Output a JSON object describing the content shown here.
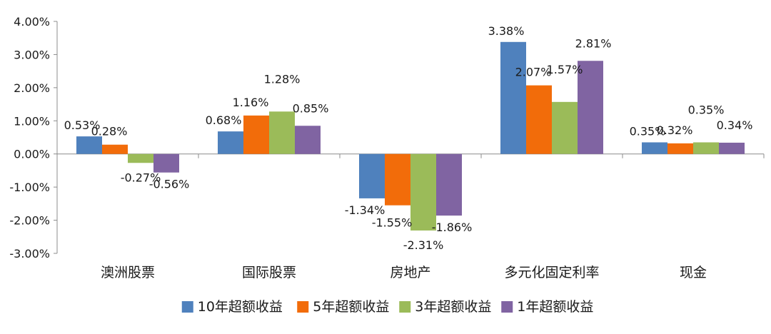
{
  "chart_data": {
    "type": "bar",
    "title": "",
    "xlabel": "",
    "ylabel": "",
    "ylim": [
      -3.0,
      4.0
    ],
    "y_ticks": [
      4.0,
      3.0,
      2.0,
      1.0,
      0.0,
      -1.0,
      -2.0,
      -3.0
    ],
    "y_tick_labels": [
      "4.00%",
      "3.00%",
      "2.00%",
      "1.00%",
      "0.00%",
      "-1.00%",
      "-2.00%",
      "-3.00%"
    ],
    "grid": false,
    "legend_position": "bottom",
    "categories": [
      "澳洲股票",
      "国际股票",
      "房地产",
      "多元化固定利率",
      "现金"
    ],
    "series": [
      {
        "name": "10年超额收益",
        "color": "#4f81bd",
        "values": [
          0.53,
          0.68,
          -1.34,
          3.38,
          0.35
        ],
        "labels": [
          "0.53%",
          "0.68%",
          "-1.34%",
          "3.38%",
          "0.35%"
        ]
      },
      {
        "name": "5年超额收益",
        "color": "#f26c0a",
        "values": [
          0.28,
          1.16,
          -1.55,
          2.07,
          0.32
        ],
        "labels": [
          "0.28%",
          "1.16%",
          "-1.55%",
          "2.07%",
          "0.32%"
        ]
      },
      {
        "name": "3年超额收益",
        "color": "#9bbb59",
        "values": [
          -0.27,
          1.28,
          -2.31,
          1.57,
          0.35
        ],
        "labels": [
          "-0.27%",
          "1.28%",
          "-2.31%",
          "1.57%",
          "0.35%"
        ]
      },
      {
        "name": "1年超额收益",
        "color": "#8064a2",
        "values": [
          -0.56,
          0.85,
          -1.86,
          2.81,
          0.34
        ],
        "labels": [
          "-0.56%",
          "0.85%",
          "-1.86%",
          "2.81%",
          "0.34%"
        ]
      }
    ]
  }
}
